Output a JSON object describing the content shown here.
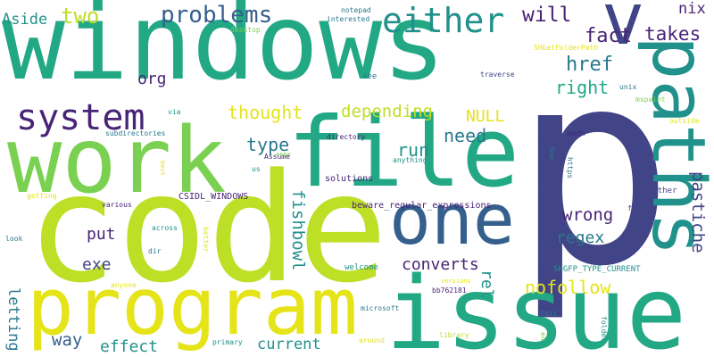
{
  "words": {
    "windows": "windows",
    "code": "code",
    "p": "p",
    "work": "work",
    "file": "file",
    "issue": "issue",
    "program": "program",
    "paths": "paths",
    "one": "one",
    "v": "v",
    "system": "system",
    "either": "either",
    "problems": "problems",
    "two": "two",
    "aside": "Aside",
    "will": "will",
    "fact": "fact",
    "takes": "takes",
    "nix": "nix",
    "href": "href",
    "org": "org",
    "right": "right",
    "depending": "depending",
    "thought": "thought",
    "null": "NULL",
    "need": "need",
    "type": "type",
    "run": "run",
    "fishbowl": "fishbowl",
    "pastiche": "pastiche",
    "put": "put",
    "regex": "regex",
    "exe": "exe",
    "converts": "converts",
    "wrong": "wrong",
    "rel": "rel",
    "nofollow": "nofollow",
    "letting": "letting",
    "way": "way",
    "effect": "effect",
    "current": "current",
    "solutions": "solutions",
    "beware": "beware_regular_expressions",
    "csidl": "CSIDL_WINDOWS",
    "shgfp": "SHGFP_TYPE_CURRENT",
    "shgetfolderpath": "SHGetFolderPath",
    "notepad": "notepad",
    "interested": "interested",
    "desktop": "desktop",
    "traverse": "traverse",
    "unix": "unix",
    "mspaint": "mspaint",
    "outside": "outside",
    "msdn": "msdn",
    "subdirectories": "subdirectories",
    "directory": "directory",
    "anything": "anything",
    "assume": "Assume",
    "aspx": "aspx",
    "us": "us",
    "via": "via",
    "best": "best",
    "getting": "getting",
    "various": "various",
    "across": "across",
    "look": "look",
    "dir": "dir",
    "better": "better",
    "anyone": "anyone",
    "see": "see",
    "now": "now",
    "https": "https",
    "rather": "rather",
    "find": "find",
    "welcome": "welcome",
    "versions": "versions",
    "bb762181": "bb762181",
    "microsoft": "microsoft",
    "edit": "Edit",
    "folder": "folder",
    "library": "library",
    "en": "en",
    "primary": "primary",
    "around": "around"
  },
  "colors": {
    "teal": "#21918c",
    "green": "#22a884",
    "mid_green": "#35b779",
    "lime": "#7ad151",
    "yellow_green": "#bddf26",
    "yellow": "#e5e419",
    "dark_purple": "#482475",
    "slate": "#414487",
    "steel_blue": "#2a788e",
    "blue": "#355f8d"
  }
}
